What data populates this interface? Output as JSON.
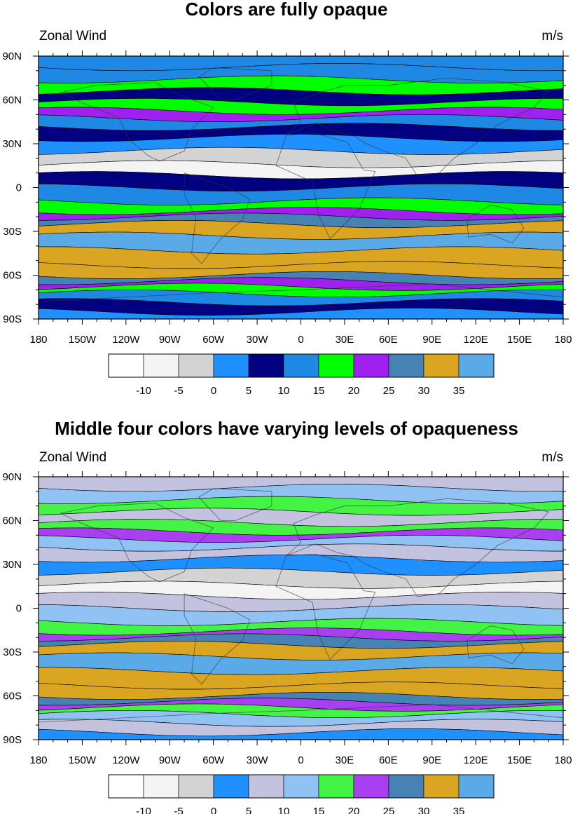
{
  "chart_data": [
    {
      "type": "heatmap",
      "title": "Colors are fully opaque",
      "left_label": "Zonal Wind",
      "units_label": "m/s",
      "x_ticks": [
        "180",
        "150W",
        "120W",
        "90W",
        "60W",
        "30W",
        "0",
        "30E",
        "60E",
        "90E",
        "120E",
        "150E",
        "180"
      ],
      "y_ticks": [
        "90S",
        "60S",
        "30S",
        "0",
        "30N",
        "60N",
        "90N"
      ],
      "xlim": [
        -180,
        180
      ],
      "ylim": [
        -90,
        90
      ],
      "contour_levels": [
        -10,
        -5,
        0,
        5,
        10,
        15,
        20,
        25,
        30,
        35
      ],
      "colorbar_colors": [
        "#ffffff",
        "#f4f4f4",
        "#d3d3d3",
        "#1e90ff",
        "#000080",
        "#1f88e5",
        "#00ff00",
        "#a020f0",
        "#4682b4",
        "#daa520",
        "#5aaae8"
      ],
      "bands": [
        {
          "lat": 87,
          "level": 10
        },
        {
          "lat": 78,
          "level": 10
        },
        {
          "lat": 70,
          "level": 15
        },
        {
          "lat": 62,
          "level": 5
        },
        {
          "lat": 55,
          "level": 15
        },
        {
          "lat": 50,
          "level": 20
        },
        {
          "lat": 45,
          "level": 10
        },
        {
          "lat": 38,
          "level": 5
        },
        {
          "lat": 30,
          "level": 0
        },
        {
          "lat": 20,
          "level": -5
        },
        {
          "lat": 12,
          "level": -10
        },
        {
          "lat": 5,
          "level": 5
        },
        {
          "lat": -5,
          "level": 10
        },
        {
          "lat": -14,
          "level": 15
        },
        {
          "lat": -18,
          "level": 20
        },
        {
          "lat": -22,
          "level": 25
        },
        {
          "lat": -28,
          "level": 30
        },
        {
          "lat": -38,
          "level": 35
        },
        {
          "lat": -48,
          "level": 30
        },
        {
          "lat": -58,
          "level": 30
        },
        {
          "lat": -62,
          "level": 25
        },
        {
          "lat": -66,
          "level": 20
        },
        {
          "lat": -70,
          "level": 15
        },
        {
          "lat": -75,
          "level": 10
        },
        {
          "lat": -82,
          "level": 5
        },
        {
          "lat": -88,
          "level": 0
        }
      ]
    },
    {
      "type": "heatmap",
      "title": "Middle four colors have varying levels of opaqueness",
      "left_label": "Zonal Wind",
      "units_label": "m/s",
      "x_ticks": [
        "180",
        "150W",
        "120W",
        "90W",
        "60W",
        "30W",
        "0",
        "30E",
        "60E",
        "90E",
        "120E",
        "150E",
        "180"
      ],
      "y_ticks": [
        "90S",
        "60S",
        "30S",
        "0",
        "30N",
        "60N",
        "90N"
      ],
      "xlim": [
        -180,
        180
      ],
      "ylim": [
        -90,
        90
      ],
      "contour_levels": [
        -10,
        -5,
        0,
        5,
        10,
        15,
        20,
        25,
        30,
        35
      ],
      "colorbar_colors": [
        "#ffffff",
        "#f4f4f4",
        "#d3d3d3",
        "#1e90ff",
        "#c3c3e0",
        "#91c2f4",
        "#44f444",
        "#a93ff0",
        "#4682b4",
        "#daa520",
        "#5aaae8"
      ],
      "bands": [
        {
          "lat": 87,
          "level": 5
        },
        {
          "lat": 78,
          "level": 10
        },
        {
          "lat": 70,
          "level": 15
        },
        {
          "lat": 62,
          "level": 5
        },
        {
          "lat": 55,
          "level": 15
        },
        {
          "lat": 50,
          "level": 20
        },
        {
          "lat": 45,
          "level": 10
        },
        {
          "lat": 38,
          "level": 5
        },
        {
          "lat": 30,
          "level": 0
        },
        {
          "lat": 20,
          "level": -5
        },
        {
          "lat": 12,
          "level": -10
        },
        {
          "lat": 5,
          "level": 5
        },
        {
          "lat": -5,
          "level": 10
        },
        {
          "lat": -14,
          "level": 15
        },
        {
          "lat": -18,
          "level": 20
        },
        {
          "lat": -22,
          "level": 25
        },
        {
          "lat": -28,
          "level": 30
        },
        {
          "lat": -38,
          "level": 35
        },
        {
          "lat": -48,
          "level": 30
        },
        {
          "lat": -58,
          "level": 30
        },
        {
          "lat": -62,
          "level": 25
        },
        {
          "lat": -66,
          "level": 20
        },
        {
          "lat": -70,
          "level": 15
        },
        {
          "lat": -75,
          "level": 10
        },
        {
          "lat": -82,
          "level": 5
        },
        {
          "lat": -88,
          "level": 0
        }
      ]
    }
  ]
}
